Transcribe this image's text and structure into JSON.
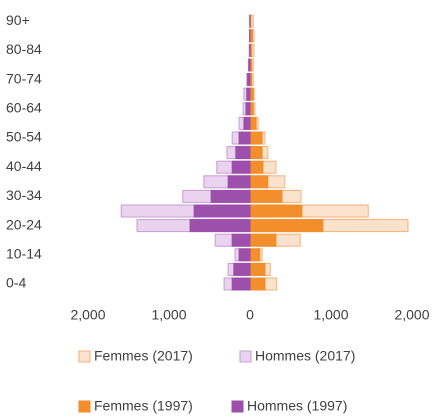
{
  "chart_data": {
    "type": "population_pyramid",
    "categories": [
      "0-4",
      null,
      "10-14",
      null,
      "20-24",
      null,
      "30-34",
      null,
      "40-44",
      null,
      "50-54",
      null,
      "60-64",
      null,
      "70-74",
      null,
      "80-84",
      null,
      "90+"
    ],
    "series": [
      {
        "name": "Femmes (2017)",
        "color": "#fbe2cc",
        "stroke": "#f5b27c",
        "values": [
          330,
          250,
          150,
          620,
          1950,
          1460,
          630,
          430,
          320,
          220,
          185,
          100,
          60,
          50,
          40,
          40,
          50,
          50,
          40
        ]
      },
      {
        "name": "Hommes (2017)",
        "color": "#ead3ee",
        "stroke": "#c79fd2",
        "values": [
          -320,
          -270,
          -185,
          -430,
          -1395,
          -1590,
          -830,
          -570,
          -410,
          -285,
          -220,
          -135,
          -85,
          -75,
          -40,
          -20,
          -10,
          -5,
          -5
        ]
      },
      {
        "name": "Femmes (1997)",
        "color": "#f28e2b",
        "stroke": "#f28e2b",
        "values": [
          185,
          185,
          120,
          320,
          900,
          640,
          395,
          220,
          160,
          150,
          150,
          75,
          40,
          40,
          20,
          20,
          20,
          30,
          10
        ]
      },
      {
        "name": "Hommes (1997)",
        "color": "#9c4fab",
        "stroke": "#9c4fab",
        "values": [
          -220,
          -200,
          -135,
          -220,
          -740,
          -690,
          -480,
          -270,
          -220,
          -175,
          -135,
          -75,
          -50,
          -40,
          -30,
          -15,
          -5,
          -5,
          -2
        ]
      }
    ],
    "xlim": [
      -2000,
      2000
    ],
    "xticks": [
      {
        "value": -2000,
        "label": "2,000"
      },
      {
        "value": -1000,
        "label": "1,000"
      },
      0,
      {
        "value": 1000,
        "label": "1,000"
      },
      {
        "value": 2000,
        "label": "2,000"
      }
    ]
  }
}
